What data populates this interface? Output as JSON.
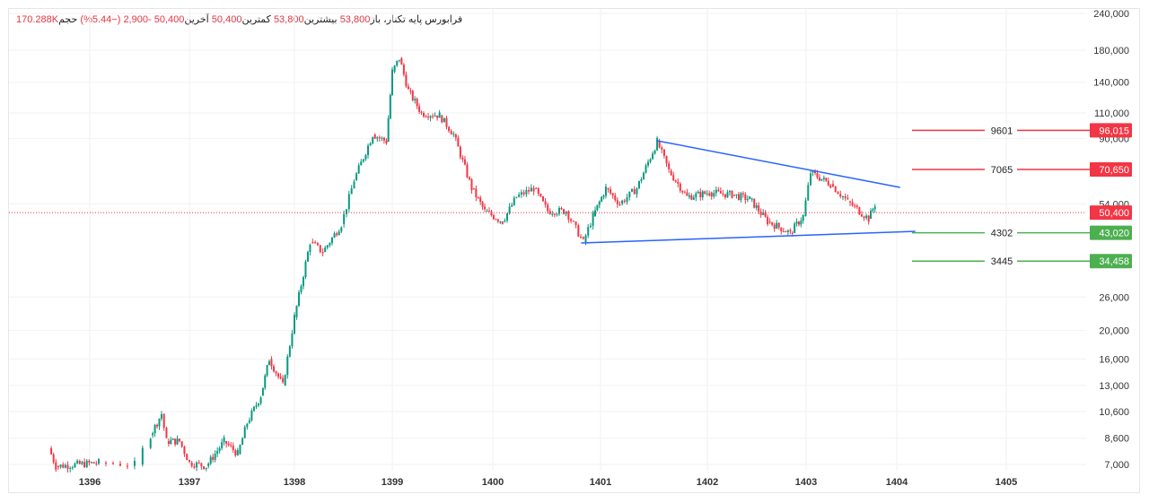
{
  "legend": {
    "symbol": "فرابورس پایه",
    "name": "تکنار،",
    "open_label": "باز",
    "open": "53,800",
    "high_label": "بیشترین",
    "high": "53,800",
    "low_label": "کمترین",
    "low": "50,400",
    "last_label": "آخرین",
    "last": "50,400",
    "change": "-2,900",
    "change_pct": "(−5.44%)",
    "volume_label": "حجم",
    "volume": "170.288K"
  },
  "chart_data": {
    "type": "candlestick",
    "y_scale": "log",
    "ylim": [
      7000,
      240000
    ],
    "grid": true,
    "y_ticks": [
      "240,000",
      "180,000",
      "140,000",
      "110,000",
      "90,000",
      "54,000",
      "26,000",
      "20,000",
      "16,000",
      "13,000",
      "10,600",
      "8,600",
      "7,000"
    ],
    "x_ticks": [
      "1396",
      "1397",
      "1398",
      "1399",
      "1400",
      "1401",
      "1402",
      "1403",
      "1404",
      "1405"
    ],
    "price_path": [
      [
        1395.59,
        7950
      ],
      [
        1395.66,
        6900
      ],
      [
        1396.09,
        7100
      ],
      [
        1396.45,
        7000
      ],
      [
        1396.61,
        8800
      ],
      [
        1396.72,
        10400
      ],
      [
        1396.77,
        8400
      ],
      [
        1396.9,
        8400
      ],
      [
        1397.0,
        7100
      ],
      [
        1397.16,
        6900
      ],
      [
        1397.33,
        8400
      ],
      [
        1397.46,
        7600
      ],
      [
        1397.55,
        9700
      ],
      [
        1397.68,
        12000
      ],
      [
        1397.76,
        16000
      ],
      [
        1397.89,
        13000
      ],
      [
        1398.0,
        22200
      ],
      [
        1398.16,
        40000
      ],
      [
        1398.29,
        37000
      ],
      [
        1398.48,
        46000
      ],
      [
        1398.61,
        65000
      ],
      [
        1398.8,
        93000
      ],
      [
        1398.94,
        88000
      ],
      [
        1399.0,
        152000
      ],
      [
        1399.07,
        169000
      ],
      [
        1399.16,
        131000
      ],
      [
        1399.29,
        110000
      ],
      [
        1399.47,
        108000
      ],
      [
        1399.61,
        93000
      ],
      [
        1399.79,
        61000
      ],
      [
        1399.92,
        51000
      ],
      [
        1400.09,
        47000
      ],
      [
        1400.22,
        57000
      ],
      [
        1400.38,
        61000
      ],
      [
        1400.51,
        51000
      ],
      [
        1400.68,
        51000
      ],
      [
        1400.84,
        40000
      ],
      [
        1400.93,
        49000
      ],
      [
        1401.05,
        61000
      ],
      [
        1401.18,
        54000
      ],
      [
        1401.34,
        61000
      ],
      [
        1401.53,
        88000
      ],
      [
        1401.64,
        70000
      ],
      [
        1401.81,
        57000
      ],
      [
        1402.02,
        59000
      ],
      [
        1402.25,
        58000
      ],
      [
        1402.43,
        56000
      ],
      [
        1402.61,
        47000
      ],
      [
        1402.84,
        43000
      ],
      [
        1402.97,
        49000
      ],
      [
        1403.05,
        69000
      ],
      [
        1403.27,
        63000
      ],
      [
        1403.46,
        55000
      ],
      [
        1403.69,
        48000
      ],
      [
        1403.76,
        53800
      ]
    ],
    "last_price": {
      "value": 50400,
      "label": "50,400",
      "color": "#f23645"
    },
    "trend_lines": [
      {
        "from": [
          1401.53,
          88500
        ],
        "to": [
          1404.03,
          61400
        ],
        "color": "#2962ff"
      },
      {
        "from": [
          1400.82,
          39700
        ],
        "to": [
          1404.17,
          43500
        ],
        "color": "#2962ff"
      }
    ],
    "levels": [
      {
        "value": 96015,
        "label": "9601",
        "price_label": "96,015",
        "color": "#f23645"
      },
      {
        "value": 70650,
        "label": "7065",
        "price_label": "70,650",
        "color": "#f23645"
      },
      {
        "value": 43020,
        "label": "4302",
        "price_label": "43,020",
        "color": "#4caf50"
      },
      {
        "value": 34458,
        "label": "3445",
        "price_label": "34,458",
        "color": "#4caf50"
      }
    ],
    "up_color": "#089981",
    "down_color": "#f23645"
  }
}
